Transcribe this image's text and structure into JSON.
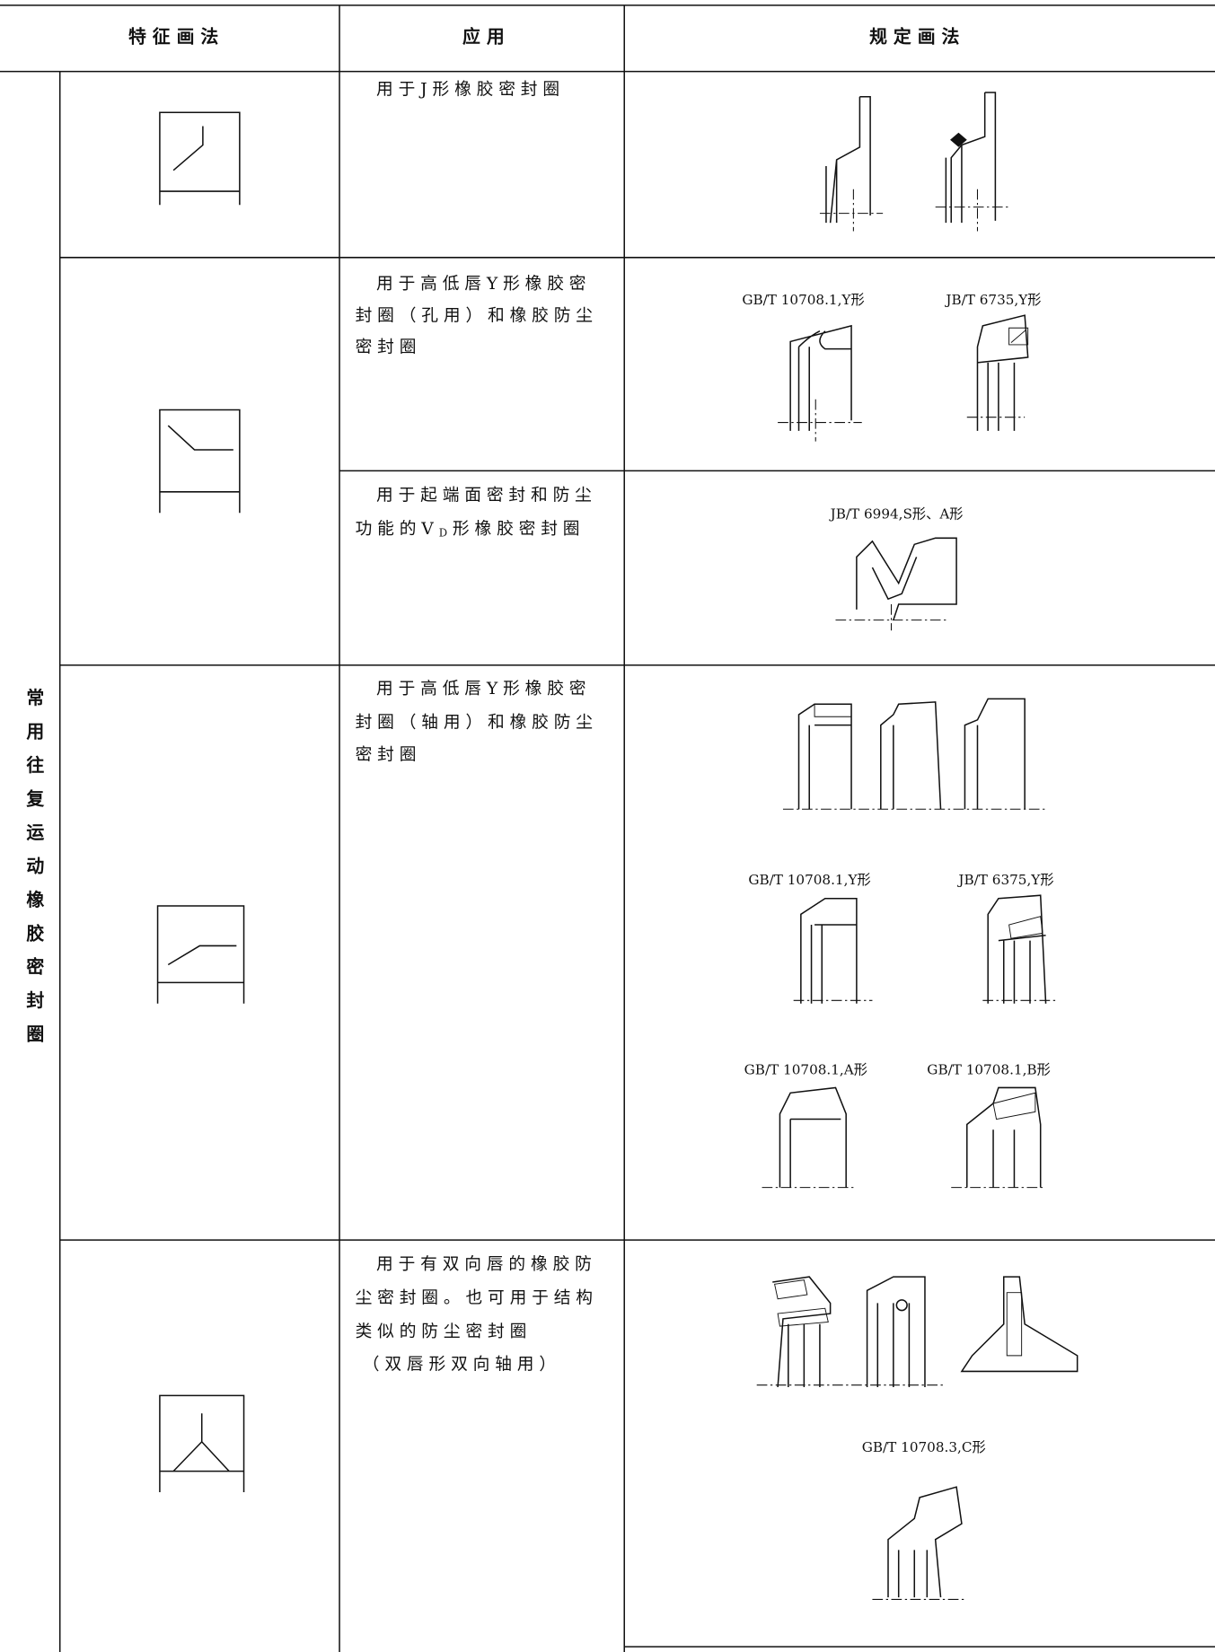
{
  "header": {
    "col1": "特 征 画 法",
    "col2": "应 用",
    "col3": "规 定 画 法"
  },
  "category": "常用往复运动橡胶密封圈",
  "rows": [
    {
      "application": [
        "用于J形橡胶密封圈"
      ]
    },
    {
      "application": [
        "用于高低唇Y形橡胶密",
        "封圈（孔用）和橡胶防尘",
        "密封圈"
      ],
      "labels": [
        "GB/T 10708.1,Y形",
        "JB/T 6735,Y形"
      ]
    },
    {
      "application": [
        "用于起端面密封和防尘",
        {
          "before": "功能的V",
          "sub": "D",
          "after": "形橡胶密封圈"
        }
      ],
      "labels": [
        "JB/T 6994,S形、A形"
      ]
    },
    {
      "application": [
        "用于高低唇Y形橡胶密",
        "封圈（轴用）和橡胶防尘",
        "密封圈"
      ],
      "labels": [
        "GB/T 10708.1,Y形",
        "JB/T 6375,Y形",
        "GB/T 10708.1,A形",
        "GB/T 10708.1,B形"
      ]
    },
    {
      "application": [
        "用于有双向唇的橡胶防",
        "尘密封圈。也可用于结构",
        "类似的防尘密封圈",
        "（双唇形双向轴用）"
      ],
      "labels": [
        "GB/T 10708.3,C形"
      ]
    }
  ]
}
